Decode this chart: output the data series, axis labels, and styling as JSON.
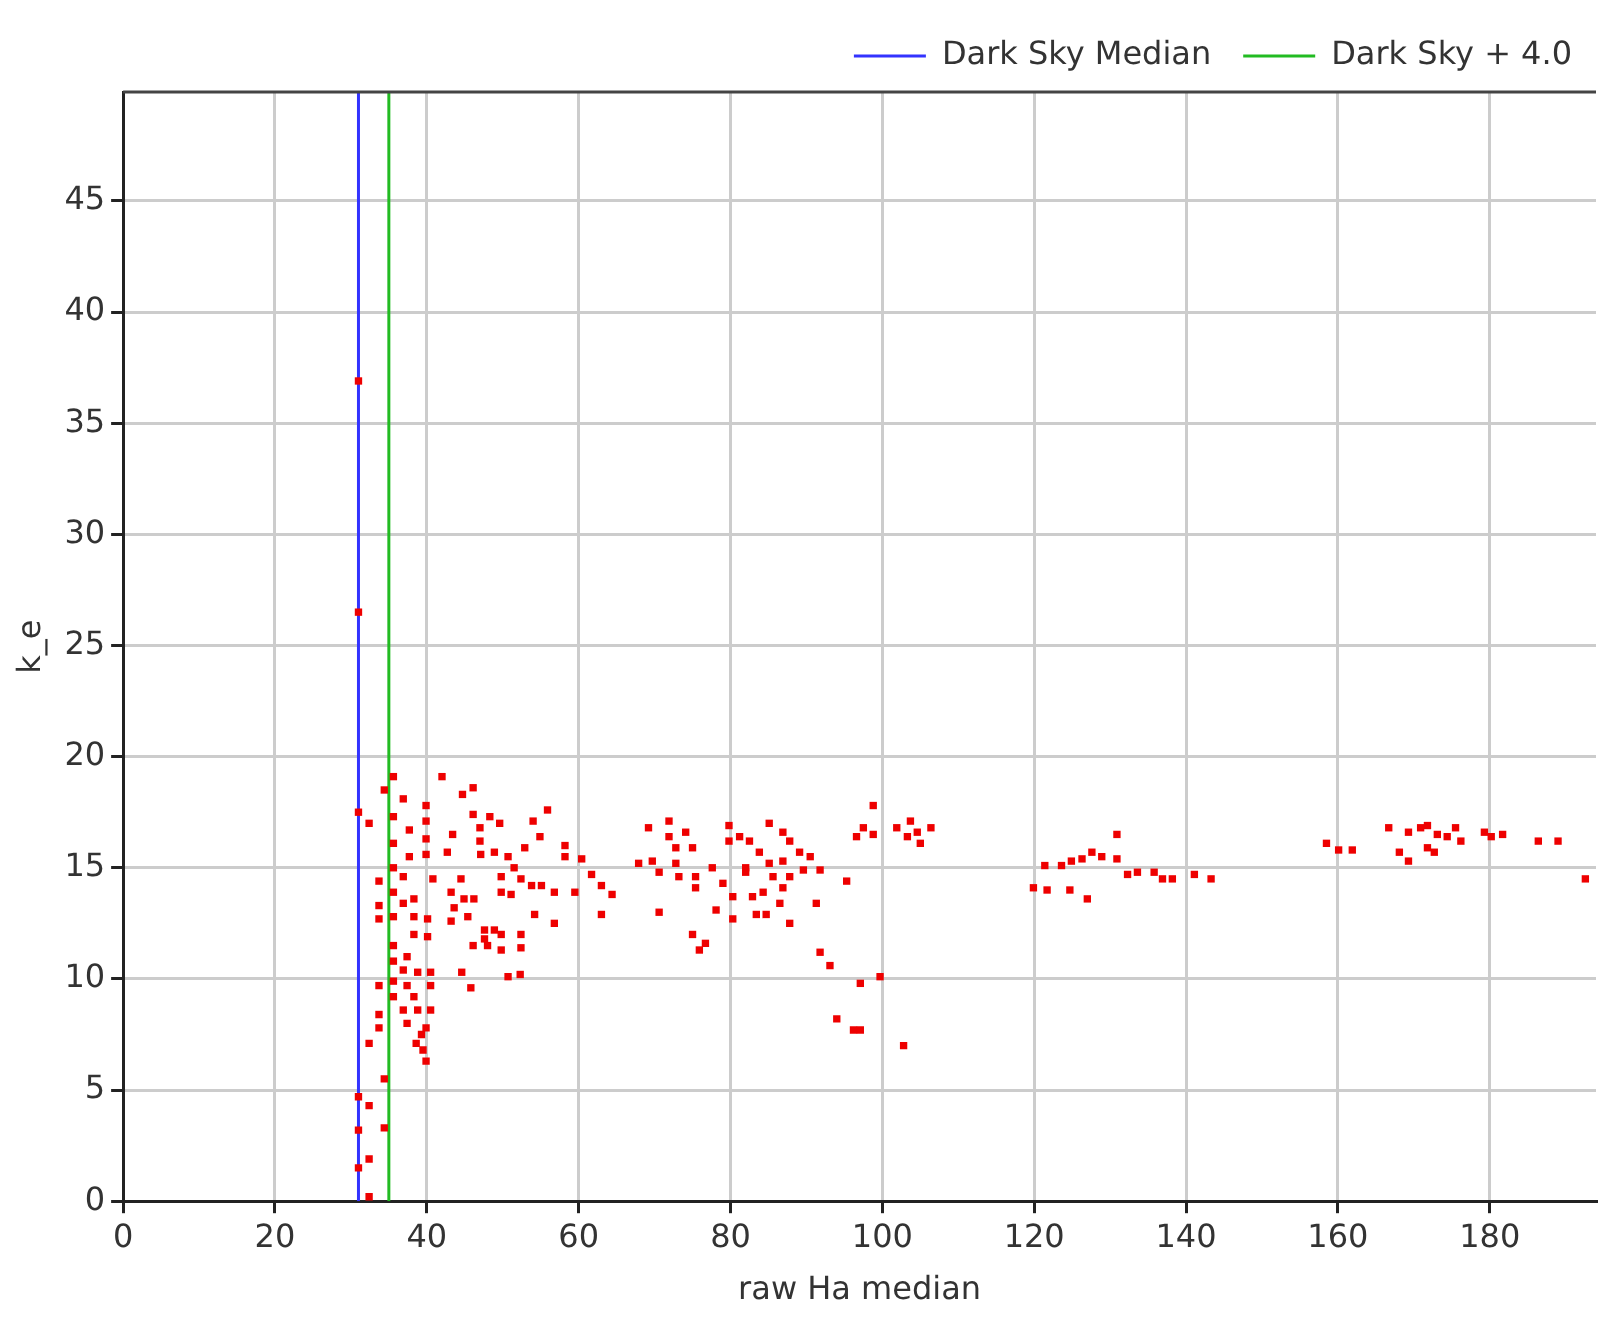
{
  "chart_data": {
    "type": "scatter",
    "xlabel": "raw Ha median",
    "ylabel": "k_e",
    "xlim": [
      0,
      194
    ],
    "ylim": [
      0,
      49.9
    ],
    "xticks": [
      0,
      20,
      40,
      60,
      80,
      100,
      120,
      140,
      160,
      180
    ],
    "yticks": [
      0,
      5,
      10,
      15,
      20,
      25,
      30,
      35,
      40,
      45
    ],
    "grid": true,
    "legend": "top right",
    "marker": "square",
    "ref_lines": [
      {
        "axis": "x",
        "value": 31,
        "label": "Dark Sky Median",
        "color": "#3333ff"
      },
      {
        "axis": "x",
        "value": 35,
        "label": "Dark Sky + 4.0",
        "color": "#22bb22"
      }
    ],
    "series": [
      {
        "color": "#ee0000",
        "x": [
          31,
          31,
          31,
          31,
          32.4,
          31,
          31,
          32.4,
          32.4,
          34.4,
          32.4,
          33.7,
          33.7,
          33.7,
          33.7,
          33.7,
          33.7,
          32.4,
          34.4,
          34.4,
          35.6,
          36.9,
          35.6,
          37.7,
          35.6,
          37.7,
          35.6,
          36.9,
          35.6,
          36.9,
          38.3,
          35.6,
          38.3,
          40.1,
          38.3,
          40.1,
          35.6,
          37.4,
          36.9,
          38.8,
          40.5,
          35.6,
          37.4,
          40.5,
          35.6,
          38.3,
          36.9,
          38.8,
          40.5,
          37.4,
          39.9,
          39.3,
          38.6,
          39.5,
          39.9,
          35.6,
          42.0,
          39.9,
          39.9,
          39.9,
          39.9,
          43.4,
          42.7,
          40.8,
          44.7,
          46.1,
          46.1,
          47.0,
          47.0,
          48.3,
          49.6,
          47.1,
          48.9,
          50.7,
          51.5,
          52.9,
          54.0,
          54.9,
          55.9,
          58.2,
          58.2,
          60.4,
          61.7,
          63.0,
          63.0,
          59.5,
          56.8,
          55.1,
          53.8,
          52.4,
          49.8,
          49.8,
          51.1,
          54.2,
          56.8,
          44.5,
          43.2,
          44.9,
          46.2,
          43.6,
          43.2,
          45.4,
          47.6,
          48.9,
          49.8,
          47.6,
          46.1,
          48.0,
          49.8,
          52.4,
          52.4,
          44.6,
          45.8,
          50.7,
          52.3,
          64.4,
          69.2,
          71.9,
          71.9,
          74.1,
          75.0,
          72.8,
          67.9,
          69.7,
          70.6,
          72.8,
          73.2,
          75.4,
          77.6,
          75.4,
          79.0,
          70.6,
          78.1,
          75.0,
          75.9,
          76.7,
          79.8,
          79.8,
          81.2,
          82.5,
          85.1,
          86.9,
          87.8,
          89.1,
          83.8,
          82.0,
          85.1,
          86.9,
          90.5,
          89.6,
          91.8,
          87.8,
          85.6,
          82.0,
          86.9,
          84.3,
          82.9,
          80.3,
          80.3,
          83.4,
          84.7,
          86.5,
          87.8,
          91.3,
          95.3,
          91.8,
          93.1,
          97.1,
          99.7,
          94.0,
          96.2,
          97.1,
          102.8,
          98.8,
          96.6,
          97.5,
          98.8,
          101.9,
          103.7,
          104.6,
          106.4,
          103.3,
          105.0,
          119.9,
          121.4,
          121.7,
          123.6,
          124.7,
          124.9,
          126.3,
          127.6,
          128.9,
          127.0,
          130.9,
          130.9,
          132.3,
          133.6,
          135.8,
          136.9,
          138.2,
          141.1,
          143.3,
          158.5,
          160.1,
          161.9,
          166.7,
          169.3,
          170.9,
          171.8,
          173.1,
          174.4,
          175.5,
          176.2,
          168.1,
          169.3,
          171.8,
          172.7,
          179.3,
          180.2,
          181.7,
          186.4,
          189.0,
          192.6
        ],
        "values": [
          36.9,
          26.5,
          17.5,
          4.7,
          4.3,
          3.2,
          1.5,
          1.9,
          0.2,
          18.5,
          17.0,
          14.4,
          13.3,
          12.7,
          9.7,
          8.4,
          7.8,
          7.1,
          5.5,
          3.3,
          19.1,
          18.1,
          17.3,
          16.7,
          16.1,
          15.5,
          15.0,
          14.6,
          13.9,
          13.4,
          13.6,
          12.8,
          12.8,
          12.7,
          12.0,
          11.9,
          10.8,
          11.0,
          10.4,
          10.3,
          10.3,
          9.9,
          9.7,
          9.7,
          9.2,
          9.2,
          8.6,
          8.6,
          8.6,
          8.0,
          7.8,
          7.5,
          7.1,
          6.8,
          6.3,
          11.5,
          19.1,
          17.8,
          17.1,
          16.3,
          15.6,
          16.5,
          15.7,
          14.5,
          18.3,
          18.6,
          17.4,
          16.8,
          16.2,
          17.3,
          17.0,
          15.6,
          15.7,
          15.5,
          15.0,
          15.9,
          17.1,
          16.4,
          17.6,
          16.0,
          15.5,
          15.4,
          14.7,
          14.2,
          12.9,
          13.9,
          13.9,
          14.2,
          14.2,
          14.5,
          14.6,
          13.9,
          13.8,
          12.9,
          12.5,
          14.5,
          13.9,
          13.6,
          13.6,
          13.2,
          12.6,
          12.8,
          12.2,
          12.2,
          12.0,
          11.8,
          11.5,
          11.5,
          11.3,
          12.0,
          11.4,
          10.3,
          9.6,
          10.1,
          10.2,
          13.8,
          16.8,
          17.1,
          16.4,
          16.6,
          15.9,
          15.9,
          15.2,
          15.3,
          14.8,
          15.2,
          14.6,
          14.6,
          15.0,
          14.1,
          14.3,
          13.0,
          13.1,
          12.0,
          11.3,
          11.6,
          16.9,
          16.2,
          16.4,
          16.2,
          17.0,
          16.6,
          16.2,
          15.7,
          15.7,
          15.0,
          15.2,
          15.3,
          15.5,
          14.9,
          14.9,
          14.6,
          14.6,
          14.8,
          14.1,
          13.9,
          13.7,
          13.7,
          12.7,
          12.9,
          12.9,
          13.4,
          12.5,
          13.4,
          14.4,
          11.2,
          10.6,
          9.8,
          10.1,
          8.2,
          7.7,
          7.7,
          7.0,
          17.8,
          16.4,
          16.8,
          16.5,
          16.8,
          17.1,
          16.6,
          16.8,
          16.4,
          16.1,
          14.1,
          15.1,
          14.0,
          15.1,
          14.0,
          15.3,
          15.4,
          15.7,
          15.5,
          13.6,
          16.5,
          15.4,
          14.7,
          14.8,
          14.8,
          14.5,
          14.5,
          14.7,
          14.5,
          16.1,
          15.8,
          15.8,
          16.8,
          16.6,
          16.8,
          16.9,
          16.5,
          16.4,
          16.8,
          16.2,
          15.7,
          15.3,
          15.9,
          15.7,
          16.6,
          16.4,
          16.5,
          16.2,
          16.2,
          14.5
        ]
      }
    ]
  }
}
